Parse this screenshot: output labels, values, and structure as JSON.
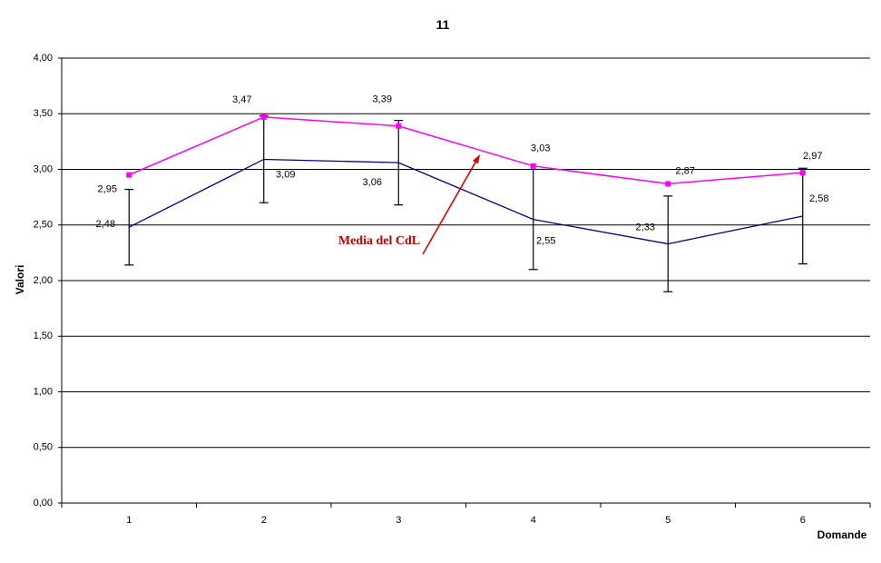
{
  "title": "11",
  "annotation": {
    "text": "Media del CdL",
    "color": "#C00000",
    "arrow_color": "#E00000"
  },
  "chart_data": {
    "type": "line",
    "categories": [
      "1",
      "2",
      "3",
      "4",
      "5",
      "6"
    ],
    "xlabel": "Domande",
    "ylabel": "Valori",
    "ylim": [
      0,
      4
    ],
    "ytick_step": 0.5,
    "ytick_labels": [
      "0,00",
      "0,50",
      "1,00",
      "1,50",
      "2,00",
      "2,50",
      "3,00",
      "3,50",
      "4,00"
    ],
    "grid": true,
    "legend": "none",
    "series": [
      {
        "name": "Media del CdL",
        "color": "#FF00FF",
        "marker": "square",
        "values": [
          2.95,
          3.47,
          3.39,
          3.03,
          2.87,
          2.97
        ],
        "labels": [
          "2,95",
          "3,47",
          "3,39",
          "3,03",
          "2,87",
          "2,97"
        ]
      },
      {
        "name": "",
        "color": "#000080",
        "marker": "none",
        "values": [
          2.48,
          3.09,
          3.06,
          2.55,
          2.33,
          2.58
        ],
        "labels": [
          "2,48",
          "3,09",
          "3,06",
          "2,55",
          "2,33",
          "2,58"
        ],
        "error_bars": {
          "color": "#000000",
          "plus_minus": [
            0.34,
            0.39,
            0.38,
            0.45,
            0.43,
            0.43
          ]
        }
      }
    ]
  }
}
